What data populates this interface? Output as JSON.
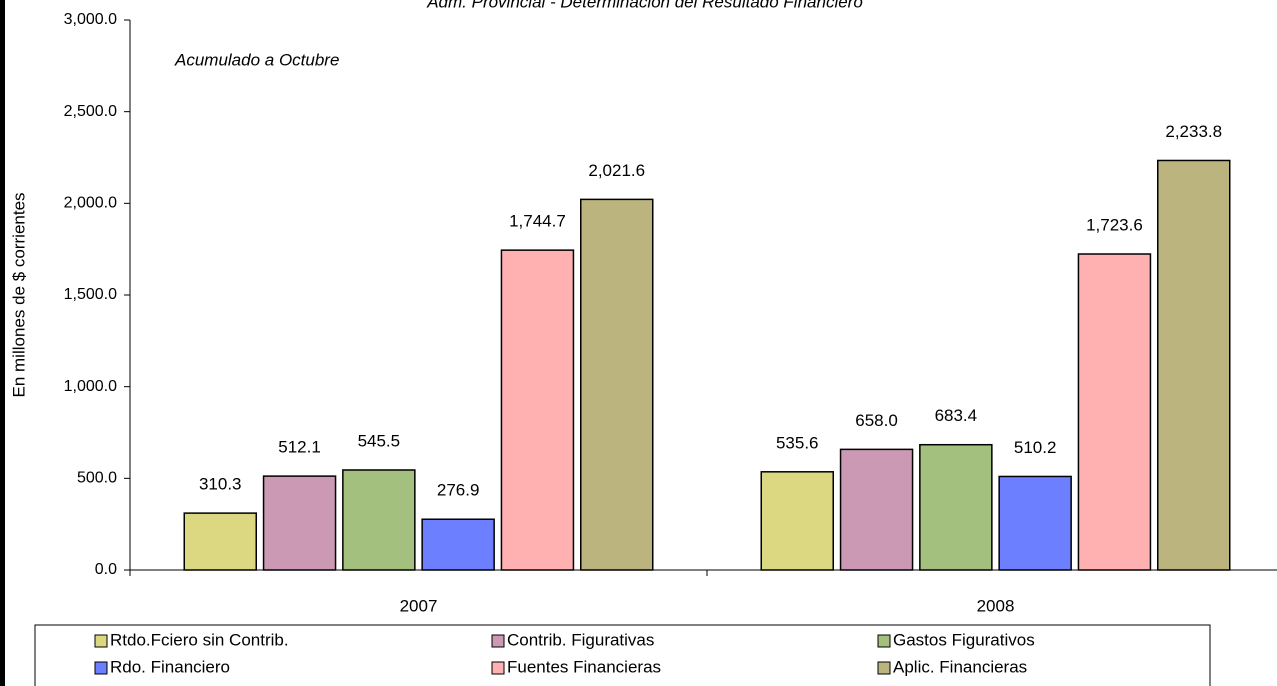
{
  "chart_data": {
    "type": "bar",
    "title": "Adm. Provincial - Determinación del Resultado Financiero",
    "annotation": "Acumulado a Octubre",
    "y_label": "En millones de $ corrientes",
    "categories": [
      "2007",
      "2008"
    ],
    "series": [
      {
        "name": "Rtdo.Fciero sin Contrib.",
        "color": "#dcd882",
        "values": [
          310.3,
          535.6
        ],
        "value_labels": [
          "310.3",
          "535.6"
        ]
      },
      {
        "name": "Contrib. Figurativas",
        "color": "#cc99b4",
        "values": [
          512.1,
          658.0
        ],
        "value_labels": [
          "512.1",
          "658.0"
        ]
      },
      {
        "name": "Gastos Figurativos",
        "color": "#a3c07e",
        "values": [
          545.5,
          683.4
        ],
        "value_labels": [
          "545.5",
          "683.4"
        ]
      },
      {
        "name": "Rdo. Financiero",
        "color": "#6b7fff",
        "values": [
          276.9,
          510.2
        ],
        "value_labels": [
          "276.9",
          "510.2"
        ]
      },
      {
        "name": "Fuentes Financieras",
        "color": "#ffb1b1",
        "values": [
          1744.7,
          1723.6
        ],
        "value_labels": [
          "1,744.7",
          "1,723.6"
        ]
      },
      {
        "name": "Aplic. Financieras",
        "color": "#bcb47e",
        "values": [
          2021.6,
          2233.8
        ],
        "value_labels": [
          "2,021.6",
          "2,233.8"
        ]
      }
    ],
    "ylim": [
      0,
      3000
    ],
    "yticks": [
      {
        "value": 0,
        "label": "0.0"
      },
      {
        "value": 500,
        "label": "500.0"
      },
      {
        "value": 1000,
        "label": "1,000.0"
      },
      {
        "value": 1500,
        "label": "1,500.0"
      },
      {
        "value": 2000,
        "label": "2,000.0"
      },
      {
        "value": 2500,
        "label": "2,500.0"
      },
      {
        "value": 3000,
        "label": "3,000.0"
      }
    ]
  }
}
